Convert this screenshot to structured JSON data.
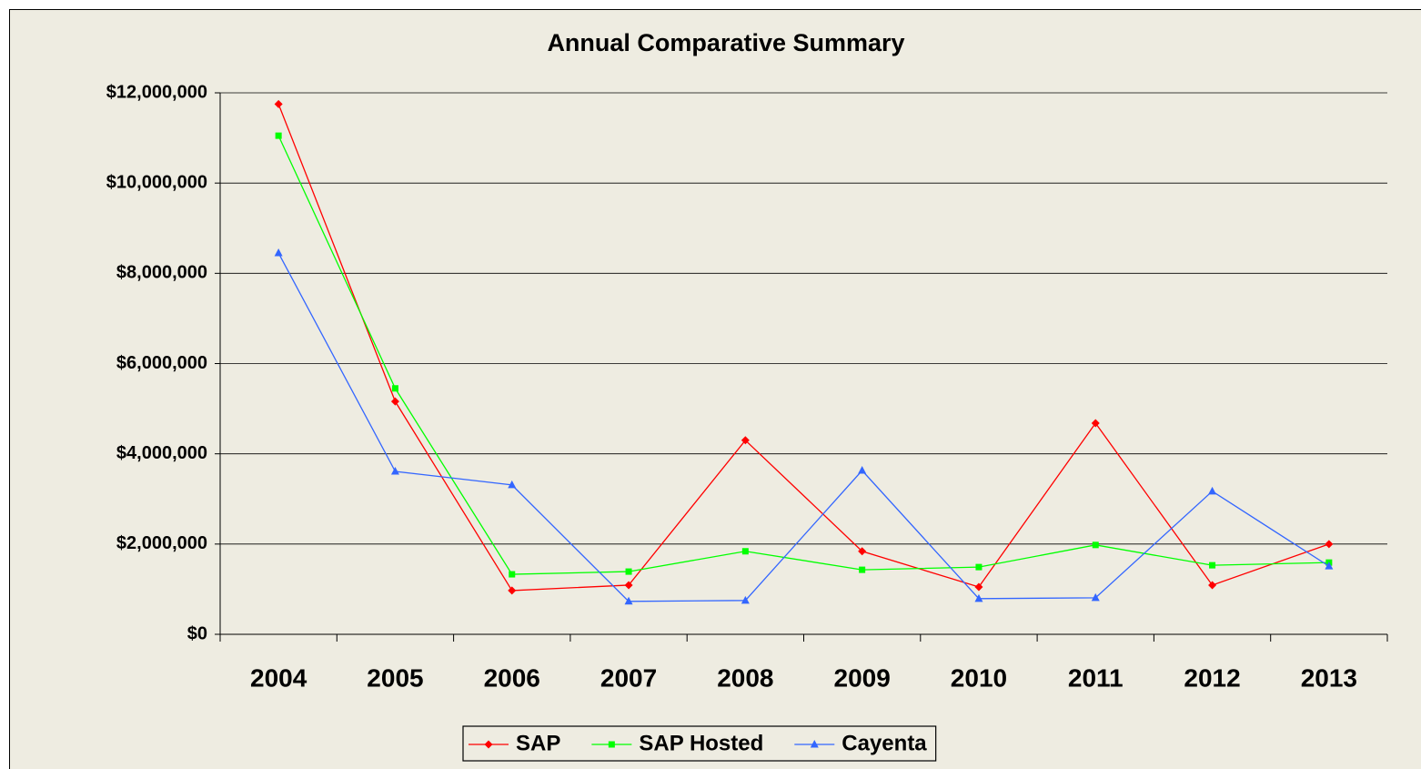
{
  "chart_data": {
    "type": "line",
    "title": "Annual Comparative Summary",
    "categories": [
      "2004",
      "2005",
      "2006",
      "2007",
      "2008",
      "2009",
      "2010",
      "2011",
      "2012",
      "2013"
    ],
    "series": [
      {
        "name": "SAP",
        "color": "#ff0000",
        "marker": "diamond",
        "values": [
          11750000,
          5160000,
          970000,
          1090000,
          4300000,
          1840000,
          1050000,
          4680000,
          1090000,
          2000000
        ]
      },
      {
        "name": "SAP Hosted",
        "color": "#00ff00",
        "marker": "square",
        "values": [
          11050000,
          5450000,
          1330000,
          1390000,
          1840000,
          1430000,
          1490000,
          1980000,
          1530000,
          1590000
        ]
      },
      {
        "name": "Cayenta",
        "color": "#3366ff",
        "marker": "triangle",
        "values": [
          8450000,
          3610000,
          3310000,
          730000,
          750000,
          3630000,
          790000,
          810000,
          3170000,
          1510000
        ]
      }
    ],
    "ylim": [
      0,
      12000000
    ],
    "yticks": [
      {
        "value": 0,
        "label": "$0"
      },
      {
        "value": 2000000,
        "label": "$2,000,000"
      },
      {
        "value": 4000000,
        "label": "$4,000,000"
      },
      {
        "value": 6000000,
        "label": "$6,000,000"
      },
      {
        "value": 8000000,
        "label": "$8,000,000"
      },
      {
        "value": 10000000,
        "label": "$10,000,000"
      },
      {
        "value": 12000000,
        "label": "$12,000,000"
      }
    ],
    "grid": true,
    "legend": "bottom"
  }
}
